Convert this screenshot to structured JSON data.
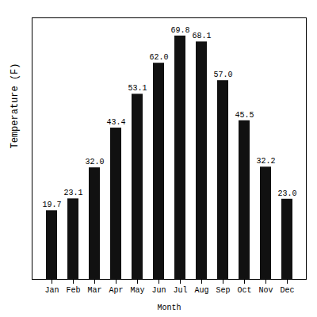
{
  "chart_data": {
    "type": "bar",
    "categories": [
      "Jan",
      "Feb",
      "Mar",
      "Apr",
      "May",
      "Jun",
      "Jul",
      "Aug",
      "Sep",
      "Oct",
      "Nov",
      "Dec"
    ],
    "values": [
      19.7,
      23.1,
      32.0,
      43.4,
      53.1,
      62.0,
      69.8,
      68.1,
      57.0,
      45.5,
      32.2,
      23.0
    ],
    "value_labels": [
      "19.7",
      "23.1",
      "32.0",
      "43.4",
      "53.1",
      "62.0",
      "69.8",
      "68.1",
      "57.0",
      "45.5",
      "32.2",
      "23.0"
    ],
    "color": "#111111",
    "xlabel": "Month",
    "ylabel": "Temperature (F)",
    "ylim": [
      0,
      75
    ],
    "yticks": [],
    "grid": false,
    "data_labels": true,
    "tick_labels": "x"
  }
}
